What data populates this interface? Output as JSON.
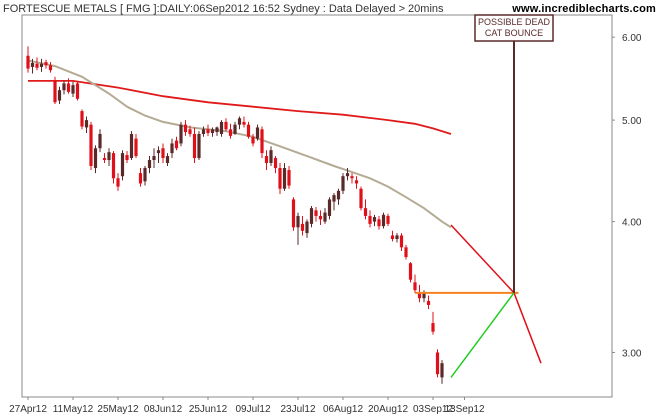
{
  "header": {
    "title": "FORTESCUE METALS [ FMG ]:DAILY:06Sep2012 16:52 Sydney : Data Delayed > 20mins",
    "site": "www.incrediblecharts.com"
  },
  "chart_data": {
    "type": "candlestick",
    "scale": "log",
    "ylim": [
      2.72,
      6.3
    ],
    "y_ticks": [
      "6.00",
      "5.00",
      "4.00",
      "3.00"
    ],
    "x_ticks": [
      "27Apr12",
      "11May12",
      "25May12",
      "08Jun12",
      "25Jun12",
      "09Jul12",
      "23Jul12",
      "06Aug12",
      "20Aug12",
      "03Sep12",
      "13Sep12"
    ],
    "x_tick_index": [
      0,
      10,
      20,
      30,
      40,
      50,
      60,
      70,
      80,
      90,
      97
    ],
    "last_index": 114,
    "colors": {
      "up": "#5a2a2a",
      "down": "#e0101a",
      "ma_short": "#b4ab94",
      "ma_long": "#e01a1a",
      "support": "#f58220",
      "projection_down": "#e0101a",
      "projection_up": "#22cc22",
      "marker": "#5a2a2a",
      "frame": "#888888"
    },
    "candles": [
      [
        5.76,
        5.88,
        5.55,
        5.6
      ],
      [
        5.62,
        5.72,
        5.54,
        5.67
      ],
      [
        5.66,
        5.74,
        5.58,
        5.61
      ],
      [
        5.62,
        5.72,
        5.56,
        5.66
      ],
      [
        5.68,
        5.71,
        5.6,
        5.64
      ],
      [
        5.64,
        5.68,
        5.55,
        5.58
      ],
      [
        5.45,
        5.5,
        5.18,
        5.2
      ],
      [
        5.22,
        5.38,
        5.18,
        5.34
      ],
      [
        5.34,
        5.45,
        5.29,
        5.42
      ],
      [
        5.42,
        5.48,
        5.3,
        5.32
      ],
      [
        5.3,
        5.44,
        5.26,
        5.4
      ],
      [
        5.42,
        5.44,
        5.22,
        5.24
      ],
      [
        5.1,
        5.12,
        4.9,
        4.93
      ],
      [
        4.92,
        5.04,
        4.86,
        5.0
      ],
      [
        4.95,
        4.98,
        4.48,
        4.52
      ],
      [
        4.5,
        4.73,
        4.45,
        4.7
      ],
      [
        4.7,
        4.9,
        4.66,
        4.85
      ],
      [
        4.6,
        4.65,
        4.55,
        4.58
      ],
      [
        4.58,
        4.7,
        4.52,
        4.66
      ],
      [
        4.65,
        4.67,
        4.35,
        4.4
      ],
      [
        4.4,
        4.45,
        4.28,
        4.32
      ],
      [
        4.42,
        4.68,
        4.38,
        4.65
      ],
      [
        4.63,
        4.67,
        4.55,
        4.58
      ],
      [
        4.6,
        4.88,
        4.58,
        4.85
      ],
      [
        4.8,
        4.85,
        4.6,
        4.62
      ],
      [
        4.45,
        4.5,
        4.32,
        4.35
      ],
      [
        4.37,
        4.52,
        4.33,
        4.5
      ],
      [
        4.5,
        4.62,
        4.45,
        4.58
      ],
      [
        4.58,
        4.7,
        4.5,
        4.62
      ],
      [
        4.65,
        4.72,
        4.55,
        4.68
      ],
      [
        4.7,
        4.75,
        4.55,
        4.6
      ],
      [
        4.55,
        4.65,
        4.52,
        4.62
      ],
      [
        4.65,
        4.8,
        4.6,
        4.75
      ],
      [
        4.78,
        4.82,
        4.68,
        4.7
      ],
      [
        4.75,
        4.98,
        4.72,
        4.95
      ],
      [
        4.95,
        5.0,
        4.83,
        4.87
      ],
      [
        4.9,
        4.94,
        4.82,
        4.85
      ],
      [
        4.85,
        4.92,
        4.55,
        4.6
      ],
      [
        4.6,
        4.88,
        4.58,
        4.85
      ],
      [
        4.85,
        4.93,
        4.82,
        4.9
      ],
      [
        4.9,
        4.95,
        4.83,
        4.86
      ],
      [
        4.86,
        4.92,
        4.82,
        4.9
      ],
      [
        4.87,
        4.93,
        4.83,
        4.92
      ],
      [
        4.85,
        5.0,
        4.82,
        4.98
      ],
      [
        4.98,
        5.02,
        4.88,
        4.9
      ],
      [
        4.9,
        4.96,
        4.8,
        4.83
      ],
      [
        4.85,
        4.98,
        4.84,
        4.95
      ],
      [
        4.95,
        5.04,
        4.9,
        5.02
      ],
      [
        4.98,
        5.04,
        4.92,
        4.95
      ],
      [
        4.95,
        4.98,
        4.8,
        4.82
      ],
      [
        4.82,
        4.85,
        4.72,
        4.75
      ],
      [
        4.8,
        4.95,
        4.78,
        4.92
      ],
      [
        4.9,
        4.93,
        4.6,
        4.65
      ],
      [
        4.62,
        4.68,
        4.48,
        4.55
      ],
      [
        4.55,
        4.72,
        4.52,
        4.68
      ],
      [
        4.6,
        4.62,
        4.45,
        4.5
      ],
      [
        4.5,
        4.55,
        4.25,
        4.3
      ],
      [
        4.3,
        4.55,
        4.28,
        4.5
      ],
      [
        4.48,
        4.52,
        4.3,
        4.33
      ],
      [
        4.2,
        4.22,
        3.92,
        3.95
      ],
      [
        3.95,
        4.08,
        3.8,
        4.05
      ],
      [
        3.98,
        4.05,
        3.88,
        3.92
      ],
      [
        3.9,
        4.02,
        3.86,
        4.0
      ],
      [
        3.98,
        4.14,
        3.95,
        4.12
      ],
      [
        4.1,
        4.13,
        4.0,
        4.05
      ],
      [
        4.05,
        4.1,
        3.97,
        4.02
      ],
      [
        4.0,
        4.12,
        3.98,
        4.08
      ],
      [
        4.05,
        4.22,
        4.02,
        4.2
      ],
      [
        4.18,
        4.26,
        4.1,
        4.24
      ],
      [
        4.2,
        4.3,
        4.15,
        4.28
      ],
      [
        4.28,
        4.45,
        4.25,
        4.42
      ],
      [
        4.42,
        4.5,
        4.38,
        4.45
      ],
      [
        4.42,
        4.45,
        4.35,
        4.4
      ],
      [
        4.38,
        4.42,
        4.3,
        4.35
      ],
      [
        4.3,
        4.32,
        4.1,
        4.12
      ],
      [
        4.12,
        4.2,
        4.02,
        4.05
      ],
      [
        4.05,
        4.1,
        3.95,
        3.98
      ],
      [
        4.0,
        4.06,
        3.96,
        4.04
      ],
      [
        4.02,
        4.05,
        3.93,
        3.96
      ],
      [
        3.96,
        4.08,
        3.94,
        4.06
      ],
      [
        4.05,
        4.07,
        3.96,
        3.98
      ],
      [
        3.88,
        3.92,
        3.83,
        3.85
      ],
      [
        3.85,
        3.9,
        3.82,
        3.88
      ],
      [
        3.88,
        3.9,
        3.75,
        3.78
      ],
      [
        3.78,
        3.8,
        3.68,
        3.7
      ],
      [
        3.65,
        3.66,
        3.5,
        3.52
      ],
      [
        3.5,
        3.56,
        3.42,
        3.44
      ],
      [
        3.42,
        3.48,
        3.35,
        3.38
      ],
      [
        3.38,
        3.44,
        3.35,
        3.42
      ],
      [
        3.36,
        3.4,
        3.3,
        3.33
      ],
      [
        3.2,
        3.28,
        3.12,
        3.14
      ],
      [
        3.0,
        3.02,
        2.84,
        2.86
      ],
      [
        2.84,
        2.95,
        2.8,
        2.93
      ]
    ],
    "ma_short": [
      [
        0,
        5.7
      ],
      [
        6,
        5.63
      ],
      [
        12,
        5.5
      ],
      [
        18,
        5.3
      ],
      [
        22,
        5.15
      ],
      [
        26,
        5.05
      ],
      [
        30,
        4.98
      ],
      [
        36,
        4.92
      ],
      [
        44,
        4.88
      ],
      [
        50,
        4.82
      ],
      [
        56,
        4.72
      ],
      [
        62,
        4.62
      ],
      [
        68,
        4.52
      ],
      [
        72,
        4.46
      ],
      [
        76,
        4.4
      ],
      [
        80,
        4.32
      ],
      [
        84,
        4.22
      ],
      [
        88,
        4.12
      ],
      [
        92,
        4.0
      ],
      [
        94,
        3.95
      ]
    ],
    "ma_long": [
      [
        0,
        5.45
      ],
      [
        10,
        5.45
      ],
      [
        20,
        5.37
      ],
      [
        30,
        5.27
      ],
      [
        40,
        5.2
      ],
      [
        50,
        5.15
      ],
      [
        60,
        5.1
      ],
      [
        70,
        5.06
      ],
      [
        80,
        5.0
      ],
      [
        86,
        4.96
      ],
      [
        90,
        4.91
      ],
      [
        94,
        4.85
      ]
    ],
    "support": {
      "y": 3.42,
      "from": 86,
      "to": 109
    },
    "projection_down": [
      [
        94,
        3.97
      ],
      [
        108,
        3.42
      ],
      [
        114,
        2.93
      ]
    ],
    "projection_up": [
      [
        94,
        2.84
      ],
      [
        108,
        3.42
      ]
    ],
    "annotation": {
      "lines": [
        "POSSIBLE DEAD",
        "CAT BOUNCE"
      ],
      "index": 108,
      "y": 3.42
    }
  }
}
